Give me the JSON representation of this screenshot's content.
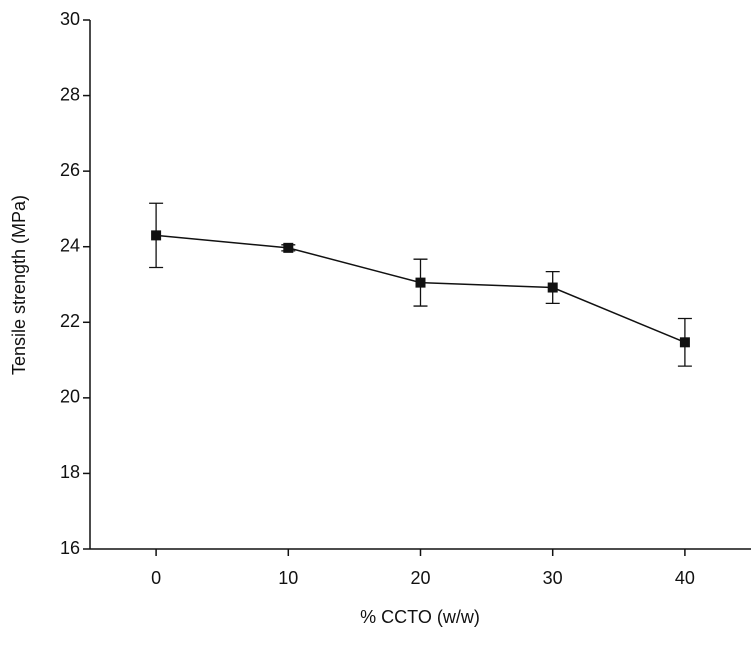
{
  "chart_data": {
    "type": "line",
    "x_label": "% CCTO  (w/w)",
    "y_label": "Tensile strength (MPa)",
    "x": [
      0,
      10,
      20,
      30,
      40
    ],
    "series": [
      {
        "color": "#111111",
        "values": [
          24.3,
          23.97,
          23.05,
          22.92,
          21.47
        ],
        "errors": [
          0.85,
          0.08,
          0.62,
          0.42,
          0.63
        ]
      }
    ],
    "xlim": [
      -5,
      45
    ],
    "xticks": [
      0,
      10,
      20,
      30,
      40
    ],
    "ylim": [
      16,
      30
    ],
    "yticks": [
      16,
      18,
      20,
      22,
      24,
      26,
      28,
      30
    ]
  }
}
